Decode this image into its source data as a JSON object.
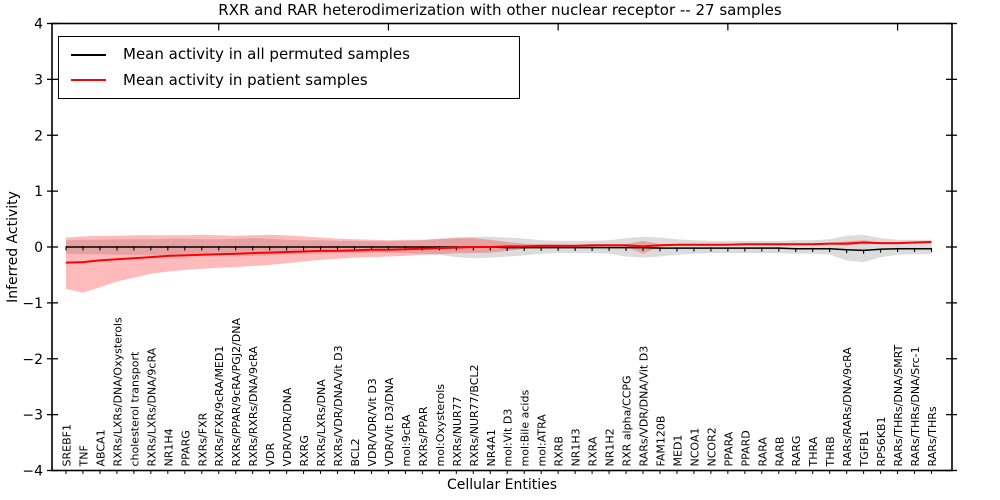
{
  "chart_data": {
    "type": "line",
    "title": "RXR and RAR heterodimerization with other nuclear receptor -- 27 samples",
    "xlabel": "Cellular Entities",
    "ylabel": "Inferred Activity",
    "ylim": [
      -4,
      4
    ],
    "yticks": [
      4,
      3,
      2,
      1,
      0,
      -1,
      -2,
      -3,
      -4
    ],
    "x_major_ticks": [
      10,
      20,
      30,
      40,
      50
    ],
    "grid": false,
    "legend_position": "upper-left",
    "colors": {
      "permuted": "#000000",
      "patient": "#ff0000",
      "permuted_band": "rgba(130,130,130,0.28)",
      "patient_band": "rgba(255,30,30,0.30)"
    },
    "categories": [
      "SREBF1",
      "TNF",
      "ABCA1",
      "RXRs/LXRs/DNA/Oxysterols",
      "cholesterol transport",
      "RXRs/LXRs/DNA/9cRA",
      "NR1H4",
      "PPARG",
      "RXRs/FXR",
      "RXRs/FXR/9cRA/MED1",
      "RXRs/PPAR/9cRA/PGJ2/DNA",
      "RXRs/RXRs/DNA/9cRA",
      "VDR",
      "VDR/VDR/DNA",
      "RXRG",
      "RXRs/LXRs/DNA",
      "RXRs/VDR/DNA/Vit D3",
      "BCL2",
      "VDR/VDR/Vit D3",
      "VDR/Vit D3/DNA",
      "mol:9cRA",
      "RXRs/PPAR",
      "mol:Oxysterols",
      "RXRs/NUR77",
      "RXRs/NUR77/BCL2",
      "NR4A1",
      "mol:Vit D3",
      "mol:Bile acids",
      "mol:ATRA",
      "RXRB",
      "NR1H3",
      "RXRA",
      "NR1H2",
      "RXR alpha/CCPG",
      "RARs/VDR/DNA/Vit D3",
      "FAM120B",
      "MED1",
      "NCOA1",
      "NCOR2",
      "PPARA",
      "PPARD",
      "RARA",
      "RARB",
      "RARG",
      "THRA",
      "THRB",
      "RARs/RARs/DNA/9cRA",
      "TGFB1",
      "RPS6KB1",
      "RARs/THRs/DNA/SMRT",
      "RARs/THRs/DNA/Src-1",
      "RARs/THRs"
    ],
    "series": [
      {
        "name": "Mean activity in all permuted samples",
        "color": "#000000",
        "band_color": "rgba(130,130,130,0.28)",
        "marker": "tick",
        "values": [
          0,
          0,
          0,
          0,
          0,
          0,
          0,
          0,
          0,
          0,
          0,
          0,
          0,
          0,
          0,
          0,
          0,
          0,
          0,
          0,
          0,
          0,
          0,
          0,
          0,
          0,
          -0.01,
          -0.01,
          -0.01,
          -0.01,
          -0.01,
          -0.01,
          -0.01,
          -0.01,
          -0.01,
          -0.02,
          -0.02,
          -0.02,
          -0.02,
          -0.02,
          -0.02,
          -0.02,
          -0.02,
          -0.03,
          -0.03,
          -0.03,
          -0.05,
          -0.06,
          -0.04,
          -0.03,
          -0.03,
          -0.03
        ],
        "upper": [
          0.12,
          0.13,
          0.13,
          0.14,
          0.14,
          0.14,
          0.15,
          0.15,
          0.14,
          0.14,
          0.15,
          0.16,
          0.15,
          0.13,
          0.12,
          0.12,
          0.11,
          0.11,
          0.1,
          0.1,
          0.11,
          0.12,
          0.14,
          0.17,
          0.18,
          0.18,
          0.17,
          0.15,
          0.12,
          0.11,
          0.11,
          0.11,
          0.12,
          0.16,
          0.18,
          0.17,
          0.14,
          0.12,
          0.11,
          0.11,
          0.11,
          0.11,
          0.11,
          0.12,
          0.12,
          0.14,
          0.2,
          0.22,
          0.16,
          0.13,
          0.13,
          0.13
        ],
        "lower": [
          -0.12,
          -0.13,
          -0.13,
          -0.14,
          -0.14,
          -0.14,
          -0.15,
          -0.15,
          -0.14,
          -0.14,
          -0.15,
          -0.16,
          -0.15,
          -0.13,
          -0.12,
          -0.12,
          -0.11,
          -0.11,
          -0.1,
          -0.1,
          -0.11,
          -0.12,
          -0.14,
          -0.18,
          -0.2,
          -0.19,
          -0.17,
          -0.15,
          -0.12,
          -0.11,
          -0.11,
          -0.11,
          -0.12,
          -0.17,
          -0.19,
          -0.17,
          -0.14,
          -0.12,
          -0.11,
          -0.11,
          -0.11,
          -0.11,
          -0.11,
          -0.12,
          -0.12,
          -0.14,
          -0.24,
          -0.27,
          -0.18,
          -0.14,
          -0.13,
          -0.13
        ]
      },
      {
        "name": "Mean activity in patient samples",
        "color": "#ff0000",
        "band_color": "rgba(255,30,30,0.30)",
        "marker": "none",
        "values": [
          -0.28,
          -0.27,
          -0.24,
          -0.22,
          -0.2,
          -0.18,
          -0.16,
          -0.15,
          -0.14,
          -0.13,
          -0.12,
          -0.11,
          -0.1,
          -0.09,
          -0.08,
          -0.07,
          -0.07,
          -0.06,
          -0.05,
          -0.05,
          -0.04,
          -0.03,
          -0.02,
          -0.01,
          0.0,
          0.0,
          0.01,
          0.01,
          0.02,
          0.02,
          0.02,
          0.03,
          0.03,
          0.03,
          0.01,
          0.03,
          0.04,
          0.04,
          0.04,
          0.04,
          0.05,
          0.05,
          0.05,
          0.05,
          0.05,
          0.06,
          0.06,
          0.08,
          0.07,
          0.07,
          0.08,
          0.09
        ],
        "upper": [
          0.17,
          0.19,
          0.2,
          0.2,
          0.21,
          0.21,
          0.21,
          0.21,
          0.22,
          0.21,
          0.2,
          0.21,
          0.22,
          0.21,
          0.19,
          0.17,
          0.15,
          0.14,
          0.13,
          0.12,
          0.13,
          0.13,
          0.15,
          0.16,
          0.16,
          0.13,
          0.09,
          0.06,
          0.05,
          0.05,
          0.04,
          0.04,
          0.04,
          0.05,
          0.11,
          0.05,
          0.05,
          0.05,
          0.05,
          0.06,
          0.06,
          0.06,
          0.06,
          0.07,
          0.07,
          0.07,
          0.1,
          0.12,
          0.08,
          0.08,
          0.09,
          0.1
        ],
        "lower": [
          -0.75,
          -0.82,
          -0.72,
          -0.62,
          -0.55,
          -0.48,
          -0.44,
          -0.41,
          -0.39,
          -0.37,
          -0.36,
          -0.34,
          -0.32,
          -0.29,
          -0.26,
          -0.23,
          -0.21,
          -0.19,
          -0.18,
          -0.17,
          -0.16,
          -0.14,
          -0.13,
          -0.11,
          -0.11,
          -0.1,
          -0.07,
          -0.03,
          -0.02,
          -0.01,
          -0.01,
          0.0,
          0.01,
          0.01,
          -0.12,
          0.01,
          0.02,
          0.02,
          0.02,
          0.03,
          0.03,
          0.03,
          0.03,
          0.04,
          0.04,
          0.04,
          0.03,
          0.05,
          0.05,
          0.05,
          0.06,
          0.07
        ]
      }
    ]
  }
}
